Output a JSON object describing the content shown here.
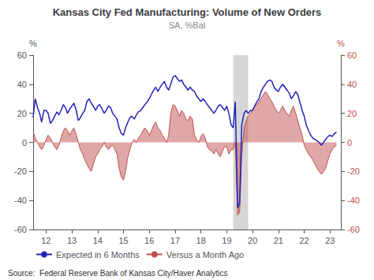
{
  "chart_data": {
    "type": "line",
    "title": "Kansas City Fed Manufacturing: Volume of New Orders",
    "subtitle": "SA, %Bal",
    "ylabel": "%",
    "y2label": "%",
    "source": "Source:  Federal Reserve Bank of Kansas City/Haver Analytics",
    "xlim": [
      11.5,
      23.42
    ],
    "xticks": [
      12,
      13,
      14,
      15,
      16,
      17,
      18,
      19,
      20,
      21,
      22,
      23
    ],
    "ylim": [
      -60,
      60
    ],
    "yticks": [
      -60,
      -40,
      -20,
      0,
      20,
      40,
      60
    ],
    "y2lim": [
      -60,
      60
    ],
    "y2ticks": [
      -60,
      -40,
      -20,
      0,
      20,
      40,
      60
    ],
    "grid": false,
    "legend": "lower left",
    "recession": [
      19.25,
      19.83
    ],
    "recession_color": "#bbbbbb",
    "x": [
      11.5,
      11.58,
      11.67,
      11.75,
      11.83,
      11.92,
      12.0,
      12.08,
      12.17,
      12.25,
      12.33,
      12.42,
      12.5,
      12.58,
      12.67,
      12.75,
      12.83,
      12.92,
      13.0,
      13.08,
      13.17,
      13.25,
      13.33,
      13.42,
      13.5,
      13.58,
      13.67,
      13.75,
      13.83,
      13.92,
      14.0,
      14.08,
      14.17,
      14.25,
      14.33,
      14.42,
      14.5,
      14.58,
      14.67,
      14.75,
      14.83,
      14.92,
      15.0,
      15.08,
      15.17,
      15.25,
      15.33,
      15.42,
      15.5,
      15.58,
      15.67,
      15.75,
      15.83,
      15.92,
      16.0,
      16.08,
      16.17,
      16.25,
      16.33,
      16.42,
      16.5,
      16.58,
      16.67,
      16.75,
      16.83,
      16.92,
      17.0,
      17.08,
      17.17,
      17.25,
      17.33,
      17.42,
      17.5,
      17.58,
      17.67,
      17.75,
      17.83,
      17.92,
      18.0,
      18.08,
      18.17,
      18.25,
      18.33,
      18.42,
      18.5,
      18.58,
      18.67,
      18.75,
      18.83,
      18.92,
      19.0,
      19.08,
      19.17,
      19.25,
      19.33,
      19.42,
      19.5,
      19.58,
      19.67,
      19.75,
      19.83,
      19.92,
      20.0,
      20.08,
      20.17,
      20.25,
      20.33,
      20.42,
      20.5,
      20.58,
      20.67,
      20.75,
      20.83,
      20.92,
      21.0,
      21.08,
      21.17,
      21.25,
      21.33,
      21.42,
      21.5,
      21.58,
      21.67,
      21.75,
      21.83,
      21.92,
      22.0,
      22.08,
      22.17,
      22.25,
      22.33,
      22.42,
      22.5,
      22.58,
      22.67,
      22.75,
      22.83,
      22.92,
      23.0,
      23.08,
      23.17,
      23.25
    ],
    "series": [
      {
        "name": "Expected in 6 Months",
        "type": "line",
        "color": "#2222bb",
        "values": [
          17,
          30,
          24,
          20,
          14,
          22,
          22,
          20,
          13,
          15,
          18,
          21,
          19,
          22,
          26,
          24,
          20,
          23,
          25,
          27,
          22,
          15,
          17,
          20,
          22,
          28,
          30,
          27,
          25,
          22,
          25,
          26,
          23,
          20,
          22,
          25,
          24,
          20,
          18,
          16,
          10,
          6,
          5,
          10,
          14,
          17,
          18,
          16,
          19,
          21,
          22,
          24,
          26,
          28,
          30,
          33,
          36,
          38,
          35,
          38,
          40,
          42,
          38,
          36,
          40,
          45,
          46,
          44,
          42,
          43,
          40,
          38,
          36,
          38,
          36,
          35,
          32,
          30,
          28,
          30,
          28,
          26,
          24,
          22,
          20,
          22,
          25,
          26,
          24,
          22,
          25,
          20,
          12,
          10,
          28,
          -45,
          -42,
          12,
          20,
          22,
          20,
          22,
          22,
          25,
          28,
          30,
          35,
          38,
          40,
          42,
          43,
          42,
          38,
          36,
          35,
          38,
          40,
          38,
          36,
          34,
          30,
          32,
          35,
          33,
          28,
          22,
          18,
          12,
          8,
          5,
          3,
          2,
          1,
          0,
          -2,
          0,
          2,
          4,
          5,
          4,
          6,
          7
        ]
      },
      {
        "name": "Versus a Month Ago",
        "type": "area",
        "color": "#c0504d",
        "axis": "y2",
        "values": [
          7,
          3,
          0,
          -3,
          -5,
          -2,
          2,
          5,
          3,
          0,
          -3,
          -5,
          -2,
          3,
          8,
          10,
          8,
          5,
          8,
          10,
          5,
          0,
          -5,
          -8,
          -12,
          -15,
          -18,
          -20,
          -15,
          -10,
          -8,
          -5,
          -3,
          0,
          -3,
          -5,
          -3,
          -2,
          -5,
          -8,
          -18,
          -24,
          -26,
          -20,
          -10,
          -5,
          0,
          2,
          0,
          3,
          5,
          8,
          10,
          8,
          5,
          8,
          12,
          14,
          10,
          8,
          5,
          3,
          0,
          5,
          20,
          26,
          25,
          22,
          18,
          22,
          20,
          16,
          15,
          18,
          16,
          5,
          2,
          0,
          4,
          6,
          3,
          -3,
          -5,
          -6,
          -8,
          -5,
          -8,
          -10,
          -6,
          -3,
          -3,
          -8,
          -5,
          -5,
          0,
          -50,
          -48,
          -10,
          10,
          15,
          18,
          20,
          22,
          25,
          26,
          28,
          30,
          33,
          35,
          33,
          30,
          28,
          25,
          22,
          20,
          22,
          25,
          22,
          20,
          18,
          22,
          25,
          20,
          15,
          10,
          5,
          -2,
          -5,
          -8,
          -10,
          -12,
          -15,
          -18,
          -20,
          -22,
          -20,
          -18,
          -12,
          -8,
          -5,
          -3,
          -2
        ]
      }
    ]
  }
}
